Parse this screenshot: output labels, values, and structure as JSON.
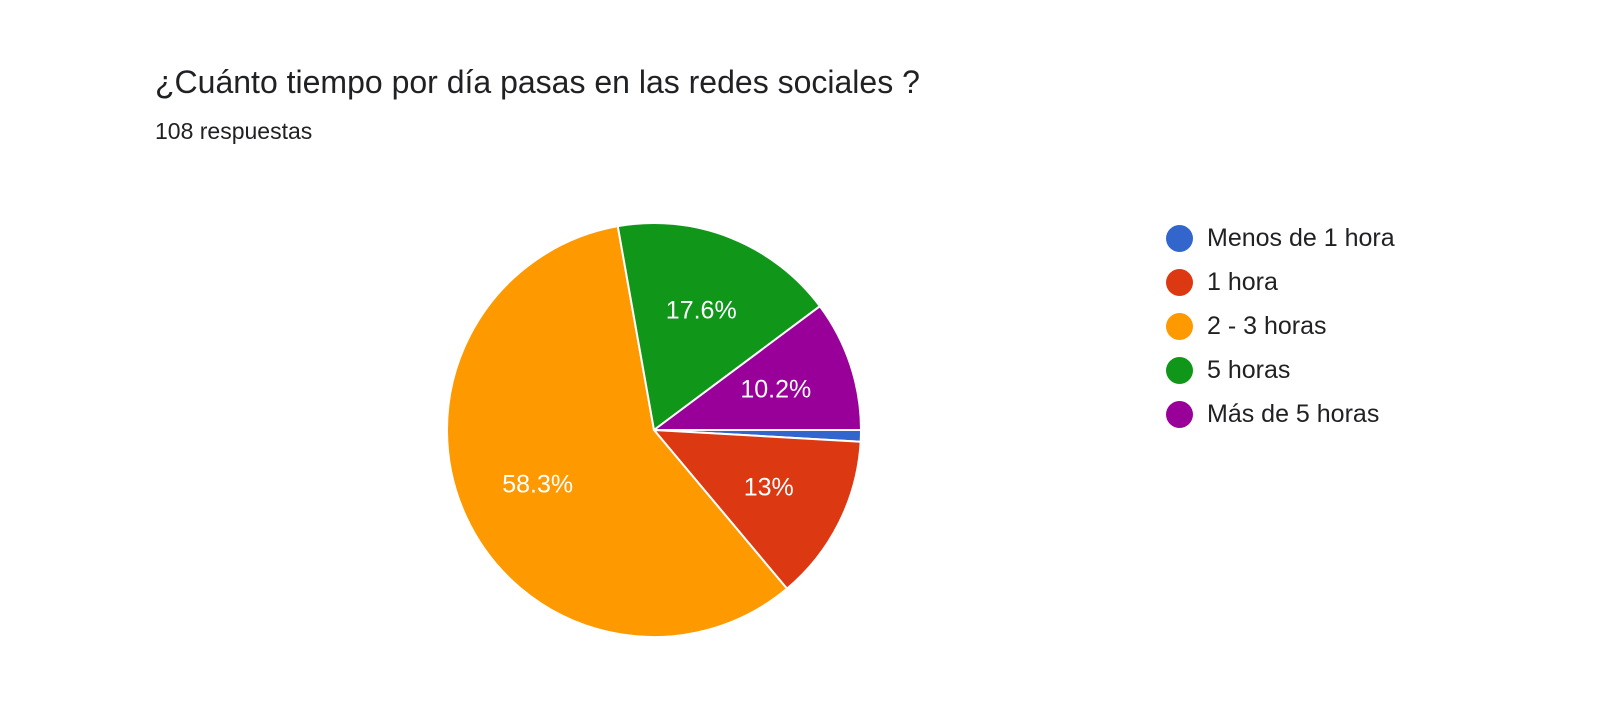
{
  "chart_data": {
    "type": "pie",
    "title": "¿Cuánto tiempo por día pasas en las redes sociales ?",
    "subtitle": "108 respuestas",
    "legend_position": "right",
    "start_angle": "right",
    "direction": "clockwise",
    "slices": [
      {
        "label": "Menos de 1 hora",
        "value": 0.9,
        "display": "",
        "color": "#3366cc"
      },
      {
        "label": "1 hora",
        "value": 13.0,
        "display": "13%",
        "color": "#dc3912"
      },
      {
        "label": "2 - 3 horas",
        "value": 58.3,
        "display": "58.3%",
        "color": "#ff9900"
      },
      {
        "label": "5 horas",
        "value": 17.6,
        "display": "17.6%",
        "color": "#109618"
      },
      {
        "label": "Más de 5 horas",
        "value": 10.2,
        "display": "10.2%",
        "color": "#990099"
      }
    ]
  }
}
